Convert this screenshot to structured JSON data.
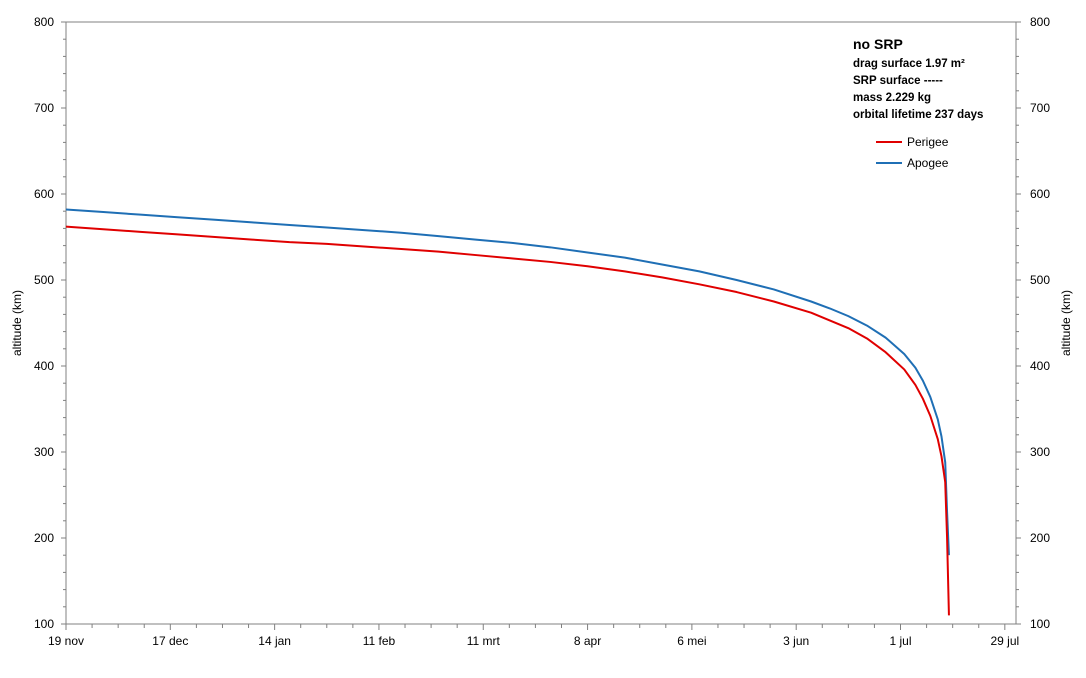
{
  "chart_data": {
    "type": "line",
    "ylabel_left": "altitude (km)",
    "ylabel_right": "altitude (km)",
    "xlabel": "",
    "ylim": [
      100,
      800
    ],
    "yticks": [
      100,
      200,
      300,
      400,
      500,
      600,
      700,
      800
    ],
    "x_range_days": [
      0,
      255
    ],
    "xticks": [
      {
        "day": 0,
        "label": "19 nov"
      },
      {
        "day": 28,
        "label": "17 dec"
      },
      {
        "day": 56,
        "label": "14 jan"
      },
      {
        "day": 84,
        "label": "11 feb"
      },
      {
        "day": 112,
        "label": "11 mrt"
      },
      {
        "day": 140,
        "label": "8 apr"
      },
      {
        "day": 168,
        "label": "6 mei"
      },
      {
        "day": 196,
        "label": "3 jun"
      },
      {
        "day": 224,
        "label": "1 jul"
      },
      {
        "day": 252,
        "label": "29 jul"
      }
    ],
    "annotation": {
      "title": "no SRP",
      "lines": [
        "drag surface  1.97 m²",
        "SRP surface -----",
        "mass 2.229 kg",
        "orbital lifetime 237 days"
      ]
    },
    "legend_position": "top-right",
    "series": [
      {
        "name": "Perigee",
        "color": "#e00000",
        "x": [
          0,
          10,
          20,
          30,
          40,
          50,
          60,
          70,
          80,
          90,
          100,
          110,
          120,
          130,
          140,
          150,
          160,
          170,
          180,
          190,
          200,
          205,
          210,
          215,
          220,
          225,
          228,
          230,
          232,
          234,
          235,
          236,
          236.5,
          237
        ],
        "values": [
          562,
          559,
          556,
          553,
          550,
          547,
          544,
          542,
          539,
          536,
          533,
          529,
          525,
          521,
          516,
          510,
          503,
          495,
          486,
          475,
          462,
          453,
          444,
          432,
          416,
          396,
          378,
          362,
          342,
          315,
          295,
          265,
          200,
          110
        ]
      },
      {
        "name": "Apogee",
        "color": "#1f6fb5",
        "x": [
          0,
          10,
          20,
          30,
          40,
          50,
          60,
          70,
          80,
          90,
          100,
          110,
          120,
          130,
          140,
          150,
          160,
          170,
          180,
          190,
          200,
          205,
          210,
          215,
          220,
          225,
          228,
          230,
          232,
          234,
          235,
          236,
          236.5,
          237
        ],
        "values": [
          582,
          579,
          576,
          573,
          570,
          567,
          564,
          561,
          558,
          555,
          551,
          547,
          543,
          538,
          532,
          526,
          518,
          510,
          500,
          489,
          475,
          467,
          458,
          447,
          433,
          414,
          398,
          383,
          364,
          338,
          318,
          288,
          230,
          180
        ]
      }
    ]
  }
}
